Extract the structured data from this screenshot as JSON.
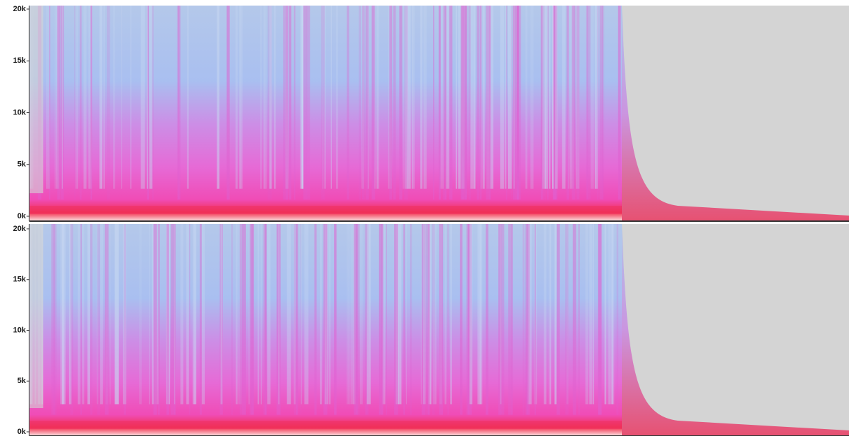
{
  "tracks": [
    {
      "ylim": [
        0,
        20000
      ],
      "yticks": [
        {
          "value": 0,
          "label": "0k"
        },
        {
          "value": 5000,
          "label": "5k"
        },
        {
          "value": 10000,
          "label": "10k"
        },
        {
          "value": 15000,
          "label": "15k"
        },
        {
          "value": 20000,
          "label": "20k"
        }
      ]
    },
    {
      "ylim": [
        0,
        20000
      ],
      "yticks": [
        {
          "value": 0,
          "label": "0k"
        },
        {
          "value": 5000,
          "label": "5k"
        },
        {
          "value": 10000,
          "label": "10k"
        },
        {
          "value": 15000,
          "label": "15k"
        },
        {
          "value": 20000,
          "label": "20k"
        }
      ]
    }
  ]
}
